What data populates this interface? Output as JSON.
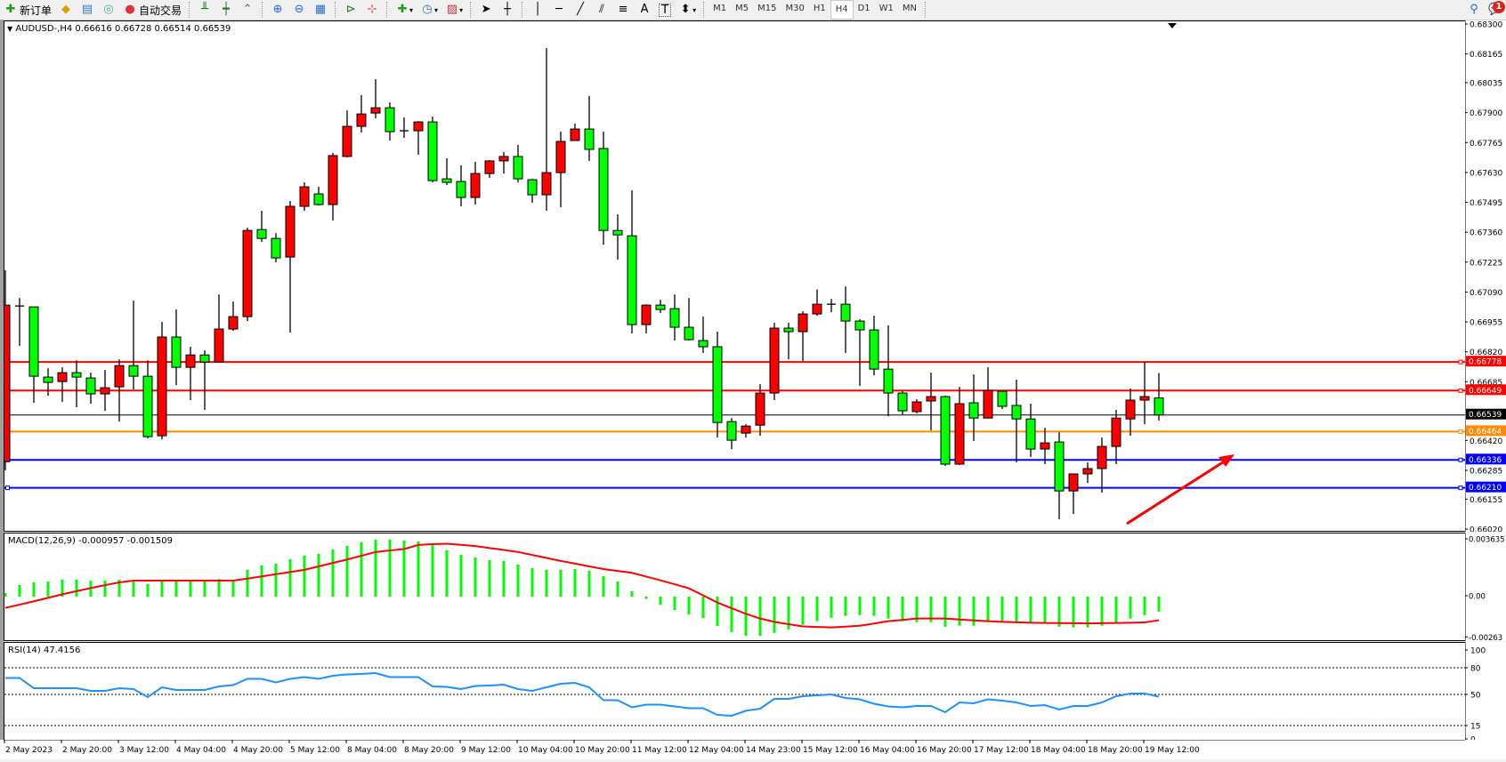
{
  "toolbar": {
    "new_order": "新订单",
    "auto_trade": "自动交易",
    "timeframes": [
      "M1",
      "M5",
      "M15",
      "M30",
      "H1",
      "H4",
      "D1",
      "W1",
      "MN"
    ],
    "active_timeframe": "H4",
    "notification_count": "1",
    "icons": [
      "new-order-icon",
      "gold-icon",
      "market-watch-icon",
      "signals-icon",
      "auto-trade-icon",
      "bar-chart-icon",
      "candlestick-icon",
      "line-chart-icon",
      "zoom-in-icon",
      "zoom-out-icon",
      "tile-windows-icon",
      "chart-shift-icon",
      "autoscroll-icon",
      "indicators-icon",
      "periods-icon",
      "templates-icon",
      "cursor-icon",
      "crosshair-icon",
      "vertical-line-icon",
      "horizontal-line-icon",
      "trendline-icon",
      "equidistant-channel-icon",
      "fibonacci-icon",
      "text-icon",
      "text-label-icon",
      "arrows-icon",
      "search-icon",
      "notification-icon"
    ],
    "text_tool": "A",
    "label_tool": "T"
  },
  "chart": {
    "symbol_header": "AUDUSD-,H4  0.66616 0.66728 0.66514 0.66539",
    "bull_color": "#ff0000",
    "bear_color": "#00ff00"
  },
  "chart_data": [
    {
      "type": "candlestick",
      "title": "AUDUSD-,H4",
      "ylim": [
        0.6602,
        0.683
      ],
      "y_ticks": [
        "0.68300",
        "0.68165",
        "0.68035",
        "0.67900",
        "0.67765",
        "0.67630",
        "0.67495",
        "0.67360",
        "0.67225",
        "0.67090",
        "0.66955",
        "0.66820",
        "0.66685",
        "0.66420",
        "0.66285",
        "0.66155",
        "0.66020"
      ],
      "x_labels": [
        "2 May 2023",
        "2 May 20:00",
        "3 May 12:00",
        "4 May 04:00",
        "4 May 20:00",
        "5 May 12:00",
        "8 May 04:00",
        "8 May 20:00",
        "9 May 12:00",
        "10 May 04:00",
        "10 May 20:00",
        "11 May 12:00",
        "12 May 04:00",
        "14 May 23:00",
        "15 May 12:00",
        "16 May 04:00",
        "16 May 20:00",
        "17 May 12:00",
        "18 May 04:00",
        "18 May 20:00",
        "19 May 12:00"
      ],
      "ohlc": [
        [
          0.66329,
          0.67192,
          0.66289,
          0.67035
        ],
        [
          0.67031,
          0.67067,
          0.66851,
          0.67031
        ],
        [
          0.67027,
          0.67027,
          0.66594,
          0.66714
        ],
        [
          0.6671,
          0.6675,
          0.66626,
          0.66686
        ],
        [
          0.6669,
          0.66754,
          0.66598,
          0.6673
        ],
        [
          0.6673,
          0.66786,
          0.66574,
          0.6671
        ],
        [
          0.66706,
          0.6673,
          0.6659,
          0.66634
        ],
        [
          0.66634,
          0.66742,
          0.66558,
          0.66662
        ],
        [
          0.66666,
          0.6679,
          0.66509,
          0.66762
        ],
        [
          0.66762,
          0.67055,
          0.66654,
          0.66714
        ],
        [
          0.66714,
          0.66786,
          0.66433,
          0.66441
        ],
        [
          0.66445,
          0.66959,
          0.66429,
          0.66891
        ],
        [
          0.66891,
          0.67015,
          0.66674,
          0.66754
        ],
        [
          0.66754,
          0.66847,
          0.66606,
          0.6681
        ],
        [
          0.6681,
          0.66831,
          0.66562,
          0.66778
        ],
        [
          0.66778,
          0.67083,
          0.66778,
          0.66927
        ],
        [
          0.66927,
          0.67051,
          0.66919,
          0.66983
        ],
        [
          0.66983,
          0.67384,
          0.66963,
          0.67372
        ],
        [
          0.67376,
          0.67461,
          0.6732,
          0.67336
        ],
        [
          0.67336,
          0.6736,
          0.67228,
          0.67248
        ],
        [
          0.67252,
          0.67505,
          0.66911,
          0.67481
        ],
        [
          0.67481,
          0.67589,
          0.67461,
          0.67569
        ],
        [
          0.67537,
          0.67569,
          0.67485,
          0.67489
        ],
        [
          0.67489,
          0.67722,
          0.67417,
          0.6771
        ],
        [
          0.67706,
          0.67914,
          0.67702,
          0.67842
        ],
        [
          0.67842,
          0.67983,
          0.67814,
          0.67898
        ],
        [
          0.67902,
          0.68055,
          0.67878,
          0.67926
        ],
        [
          0.67926,
          0.6795,
          0.67778,
          0.67818
        ],
        [
          0.67822,
          0.67882,
          0.6779,
          0.67822
        ],
        [
          0.67822,
          0.67866,
          0.67714,
          0.67862
        ],
        [
          0.67862,
          0.67886,
          0.67589,
          0.67597
        ],
        [
          0.67605,
          0.67698,
          0.67577,
          0.67589
        ],
        [
          0.67593,
          0.67666,
          0.67481,
          0.67521
        ],
        [
          0.67521,
          0.67682,
          0.67489,
          0.67629
        ],
        [
          0.67629,
          0.6769,
          0.67609,
          0.67686
        ],
        [
          0.67686,
          0.67726,
          0.67629,
          0.67706
        ],
        [
          0.67706,
          0.67758,
          0.67589,
          0.67605
        ],
        [
          0.67601,
          0.67605,
          0.67497,
          0.67533
        ],
        [
          0.67533,
          0.68195,
          0.67461,
          0.67633
        ],
        [
          0.67633,
          0.67818,
          0.67477,
          0.67774
        ],
        [
          0.67778,
          0.67854,
          0.67778,
          0.6783
        ],
        [
          0.6783,
          0.67979,
          0.67686,
          0.67738
        ],
        [
          0.67742,
          0.67818,
          0.67308,
          0.67372
        ],
        [
          0.67372,
          0.67445,
          0.6724,
          0.67352
        ],
        [
          0.67348,
          0.67553,
          0.66907,
          0.66947
        ],
        [
          0.66947,
          0.67039,
          0.66907,
          0.67035
        ],
        [
          0.67035,
          0.67059,
          0.66999,
          0.67015
        ],
        [
          0.67019,
          0.67083,
          0.66875,
          0.66935
        ],
        [
          0.66935,
          0.67067,
          0.66875,
          0.66879
        ],
        [
          0.66875,
          0.66983,
          0.66819,
          0.66847
        ],
        [
          0.66847,
          0.66915,
          0.66437,
          0.66505
        ],
        [
          0.66509,
          0.66525,
          0.66385,
          0.66425
        ],
        [
          0.66457,
          0.66497,
          0.66437,
          0.66489
        ],
        [
          0.66493,
          0.66678,
          0.66445,
          0.66638
        ],
        [
          0.66638,
          0.66955,
          0.66606,
          0.66931
        ],
        [
          0.66931,
          0.66955,
          0.6679,
          0.66915
        ],
        [
          0.66915,
          0.67007,
          0.66782,
          0.66995
        ],
        [
          0.66995,
          0.67106,
          0.66987,
          0.67039
        ],
        [
          0.67039,
          0.67063,
          0.67003,
          0.67039
        ],
        [
          0.67039,
          0.67119,
          0.66819,
          0.66963
        ],
        [
          0.66963,
          0.66971,
          0.6667,
          0.66923
        ],
        [
          0.66923,
          0.66987,
          0.66718,
          0.66746
        ],
        [
          0.66746,
          0.66943,
          0.66533,
          0.66638
        ],
        [
          0.66638,
          0.66646,
          0.66541,
          0.66558
        ],
        [
          0.66554,
          0.6661,
          0.66546,
          0.66598
        ],
        [
          0.66602,
          0.6673,
          0.66469,
          0.66622
        ],
        [
          0.66622,
          0.66626,
          0.66309,
          0.66317
        ],
        [
          0.66317,
          0.66666,
          0.66313,
          0.6659
        ],
        [
          0.66594,
          0.66722,
          0.66421,
          0.66525
        ],
        [
          0.66525,
          0.66754,
          0.66525,
          0.6665
        ],
        [
          0.66646,
          0.66646,
          0.66566,
          0.66578
        ],
        [
          0.66582,
          0.66698,
          0.66325,
          0.66521
        ],
        [
          0.66521,
          0.6659,
          0.66349,
          0.66385
        ],
        [
          0.66385,
          0.66481,
          0.66317,
          0.66413
        ],
        [
          0.66417,
          0.66461,
          0.66068,
          0.66196
        ],
        [
          0.66196,
          0.66273,
          0.66092,
          0.66273
        ],
        [
          0.66273,
          0.66325,
          0.66232,
          0.66297
        ],
        [
          0.66297,
          0.66437,
          0.66188,
          0.66397
        ],
        [
          0.66397,
          0.66562,
          0.66317,
          0.66525
        ],
        [
          0.66521,
          0.66658,
          0.66445,
          0.66606
        ],
        [
          0.66606,
          0.66778,
          0.66497,
          0.66622
        ],
        [
          0.66616,
          0.66728,
          0.66514,
          0.66539
        ]
      ],
      "horizontal_lines": [
        {
          "price": "0.66778",
          "color": "#ff0000"
        },
        {
          "price": "0.66649",
          "color": "#ff0000"
        },
        {
          "price": "0.66539",
          "color": "#000000"
        },
        {
          "price": "0.66464",
          "color": "#ff8c00"
        },
        {
          "price": "0.66336",
          "color": "#0000ff"
        },
        {
          "price": "0.66210",
          "color": "#0000ff"
        }
      ],
      "arrow_color": "#ff0000"
    },
    {
      "type": "bar+line",
      "title": "MACD(12,26,9) -0.000957 -0.001509",
      "ylim": [
        -0.00263,
        0.003635
      ],
      "y_ticks": [
        "0.003635",
        "0.00",
        "-0.00263"
      ],
      "histogram_color": "#00ff00",
      "signal_color": "#ff0000",
      "histogram": [
        0.00023,
        0.00074,
        0.00091,
        0.00097,
        0.00108,
        0.00108,
        0.00102,
        0.00102,
        0.00108,
        0.00108,
        0.0008,
        0.00102,
        0.00102,
        0.00102,
        0.00102,
        0.00112,
        0.00104,
        0.00171,
        0.00199,
        0.00211,
        0.00239,
        0.00262,
        0.00273,
        0.00302,
        0.00324,
        0.00347,
        0.00364,
        0.00364,
        0.00359,
        0.00353,
        0.0033,
        0.00296,
        0.00268,
        0.0025,
        0.00233,
        0.00228,
        0.00205,
        0.00182,
        0.00171,
        0.00171,
        0.00176,
        0.00165,
        0.00131,
        0.00097,
        0.00034,
        -0.00015,
        -0.00053,
        -0.00085,
        -0.00114,
        -0.00137,
        -0.00188,
        -0.00226,
        -0.0025,
        -0.0025,
        -0.00231,
        -0.00209,
        -0.0018,
        -0.00157,
        -0.00135,
        -0.00123,
        -0.00118,
        -0.00123,
        -0.0014,
        -0.00157,
        -0.00163,
        -0.00163,
        -0.00192,
        -0.00186,
        -0.00186,
        -0.00163,
        -0.00163,
        -0.00169,
        -0.00169,
        -0.00169,
        -0.00192,
        -0.00197,
        -0.00197,
        -0.00186,
        -0.00169,
        -0.0014,
        -0.00118,
        -0.000957
      ],
      "signal": [
        -0.00072,
        -0.00051,
        -0.0003,
        -8e-05,
        0.00015,
        0.00035,
        0.00055,
        0.00073,
        0.00091,
        0.00102,
        0.00102,
        0.00102,
        0.00102,
        0.00102,
        0.00102,
        0.00102,
        0.00102,
        0.00115,
        0.00129,
        0.00143,
        0.00157,
        0.00171,
        0.00193,
        0.00215,
        0.00237,
        0.00261,
        0.00285,
        0.00295,
        0.00304,
        0.0033,
        0.00335,
        0.00338,
        0.00331,
        0.00323,
        0.0031,
        0.00298,
        0.00285,
        0.00266,
        0.00247,
        0.00228,
        0.00211,
        0.00193,
        0.00176,
        0.00164,
        0.00152,
        0.00128,
        0.00104,
        0.00079,
        0.00053,
        8e-05,
        -0.00038,
        -0.00074,
        -0.0011,
        -0.0014,
        -0.00161,
        -0.00176,
        -0.0019,
        -0.00194,
        -0.00197,
        -0.00192,
        -0.00186,
        -0.00172,
        -0.00157,
        -0.00149,
        -0.0014,
        -0.0014,
        -0.0014,
        -0.00146,
        -0.00152,
        -0.00157,
        -0.00161,
        -0.00164,
        -0.00167,
        -0.00168,
        -0.00169,
        -0.0017,
        -0.00171,
        -0.0017,
        -0.00168,
        -0.00167,
        -0.00165,
        -0.001509
      ]
    },
    {
      "type": "line",
      "title": "RSI(14) 47.4156",
      "ylim": [
        0,
        100
      ],
      "y_ticks": [
        "100",
        "80",
        "50",
        "15",
        "0"
      ],
      "levels": [
        80,
        50,
        15
      ],
      "color": "#1e90ff",
      "values": [
        68.5,
        68.5,
        57,
        57,
        57,
        57,
        54,
        54,
        57,
        56,
        47,
        58,
        55,
        55,
        55,
        59,
        60.5,
        67.5,
        67.5,
        63.5,
        67.5,
        69.5,
        67.5,
        71,
        72.5,
        73,
        74,
        69.5,
        69.5,
        69.5,
        59,
        58.5,
        56,
        59.5,
        60,
        61,
        56,
        54,
        58,
        62,
        63,
        58,
        43.5,
        43.5,
        35.5,
        38.5,
        38.5,
        36.5,
        34.5,
        34.5,
        27,
        26,
        31.6,
        34,
        45,
        45,
        48,
        49,
        50,
        46,
        44.5,
        39.5,
        36.5,
        35.5,
        37,
        37,
        30,
        41,
        40,
        44.5,
        43,
        41,
        37,
        38,
        33,
        37,
        37,
        41,
        48,
        51,
        51,
        47.4156
      ]
    }
  ]
}
